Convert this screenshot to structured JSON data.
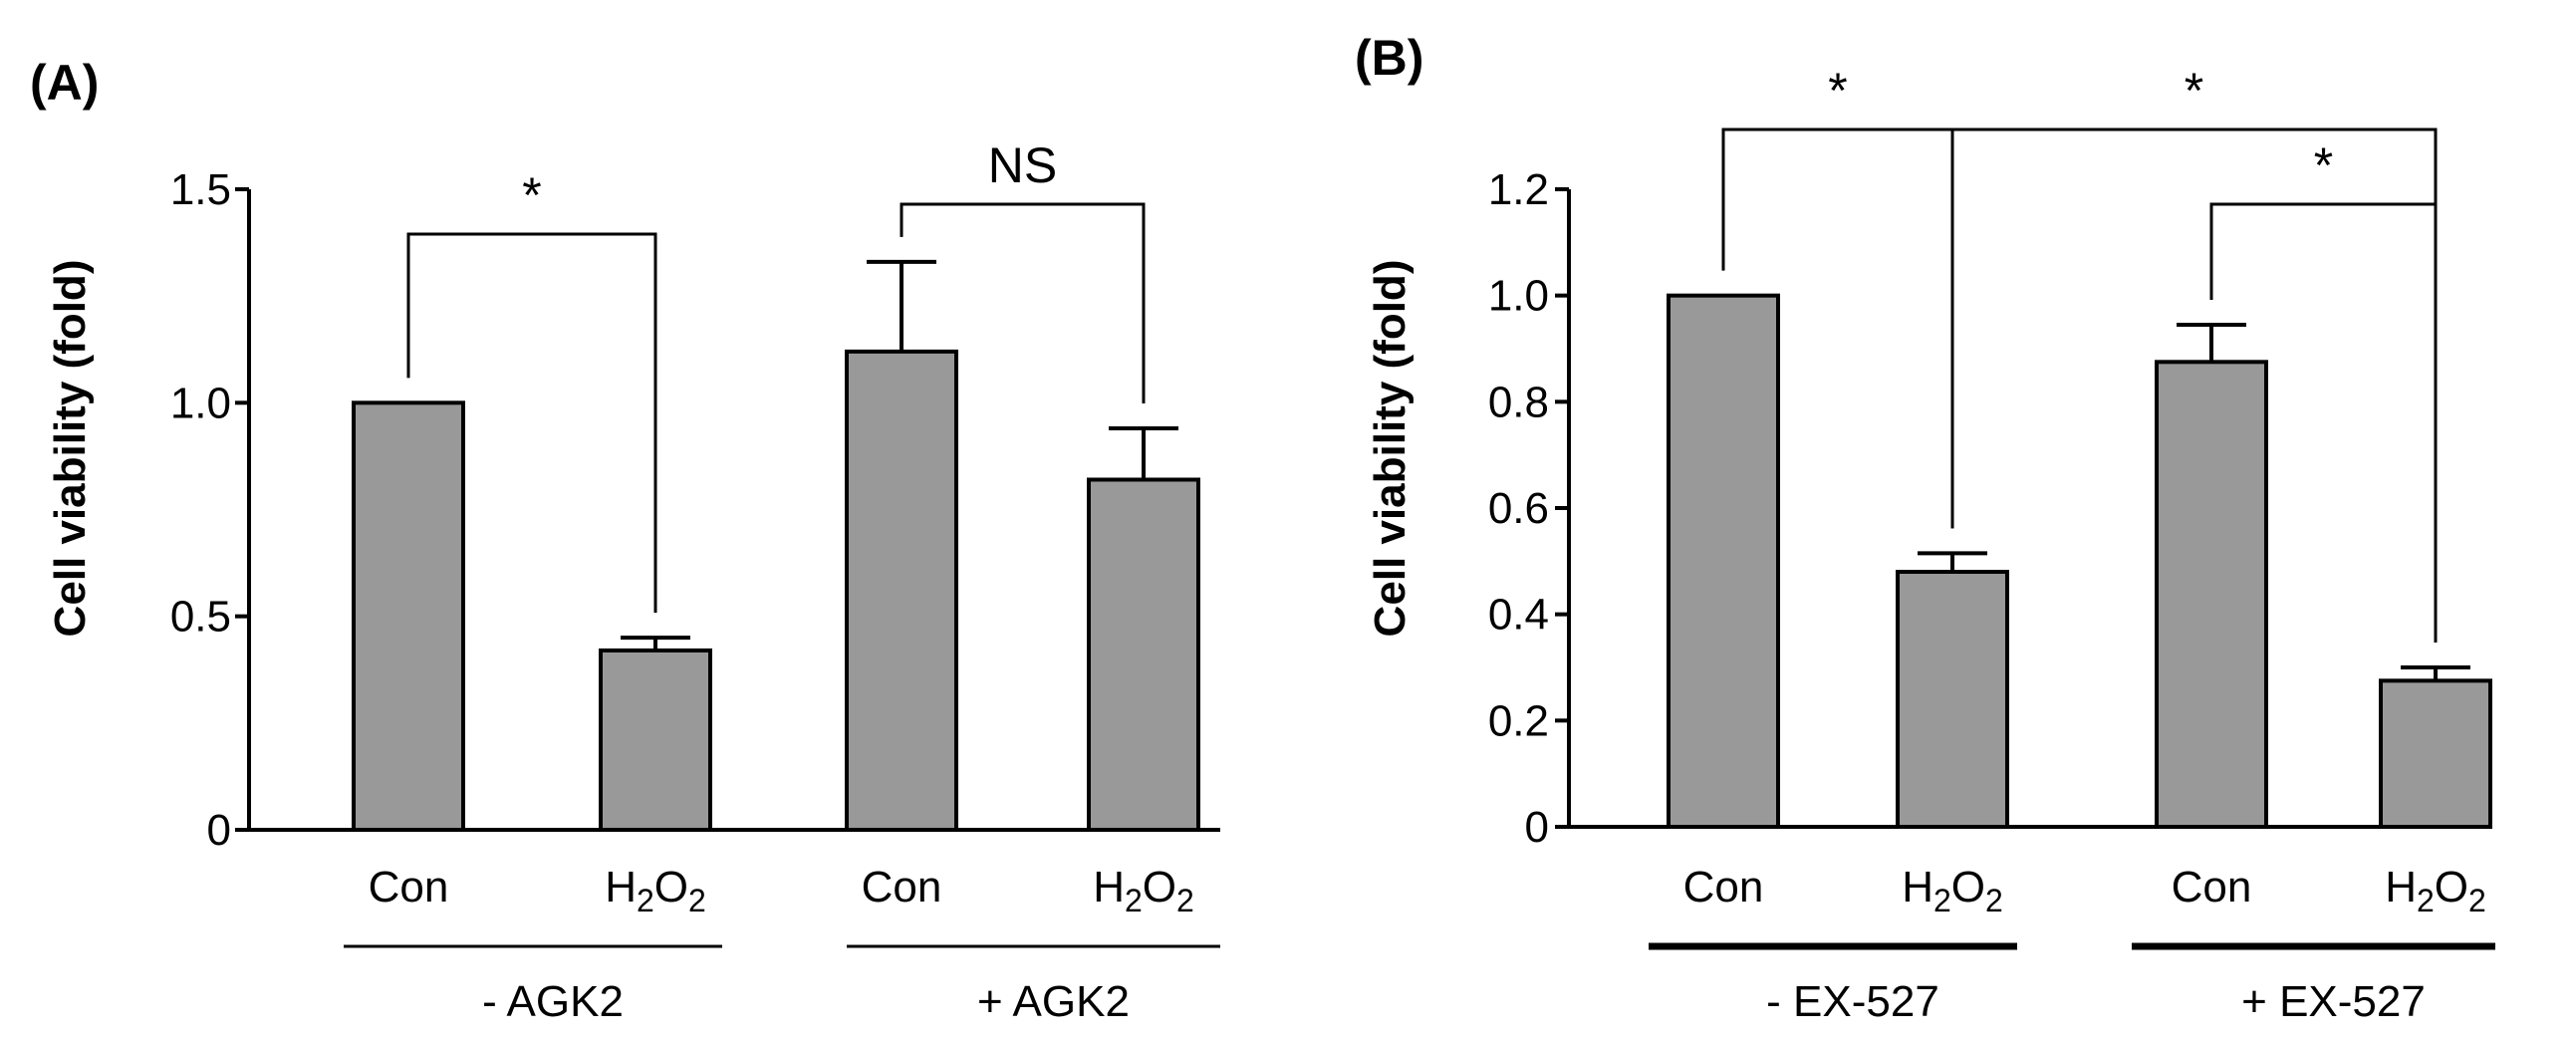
{
  "chart_data": [
    {
      "type": "bar",
      "panel_label": "(A)",
      "ylabel": "Cell viability (fold)",
      "ylim": [
        0,
        1.5
      ],
      "yticks": [
        0,
        0.5,
        1.0,
        1.5
      ],
      "ytick_labels": [
        "0",
        "0.5",
        "1.0",
        "1.5"
      ],
      "categories": [
        "Con",
        "H2O2",
        "Con",
        "H2O2"
      ],
      "values": [
        1.0,
        0.42,
        1.12,
        0.82
      ],
      "errors": [
        0.0,
        0.03,
        0.21,
        0.12
      ],
      "groups": [
        {
          "label": "- AGK2",
          "members": [
            0,
            1
          ],
          "line": "thin"
        },
        {
          "label": "+ AGK2",
          "members": [
            2,
            3
          ],
          "line": "thin"
        }
      ],
      "annotations": [
        {
          "label": "*",
          "from": 0,
          "to": 1
        },
        {
          "label": "NS",
          "from": 2,
          "to": 3
        }
      ],
      "bar_color": "#999999"
    },
    {
      "type": "bar",
      "panel_label": "(B)",
      "ylabel": "Cell viability (fold)",
      "ylim": [
        0,
        1.2
      ],
      "yticks": [
        0,
        0.2,
        0.4,
        0.6,
        0.8,
        1.0,
        1.2
      ],
      "ytick_labels": [
        "0",
        "0.2",
        "0.4",
        "0.6",
        "0.8",
        "1.0",
        "1.2"
      ],
      "categories": [
        "Con",
        "H2O2",
        "Con",
        "H2O2"
      ],
      "values": [
        1.0,
        0.48,
        0.875,
        0.275
      ],
      "errors": [
        0.0,
        0.035,
        0.07,
        0.025
      ],
      "groups": [
        {
          "label": "- EX-527",
          "members": [
            0,
            1
          ],
          "line": "thick"
        },
        {
          "label": "+ EX-527",
          "members": [
            2,
            3
          ],
          "line": "thick"
        }
      ],
      "annotations": [
        {
          "label": "*",
          "from": 0,
          "to": 1
        },
        {
          "label": "*",
          "from": 1,
          "to": 3
        },
        {
          "label": "*",
          "from": 2,
          "to": 3
        }
      ],
      "bar_color": "#999999"
    }
  ]
}
